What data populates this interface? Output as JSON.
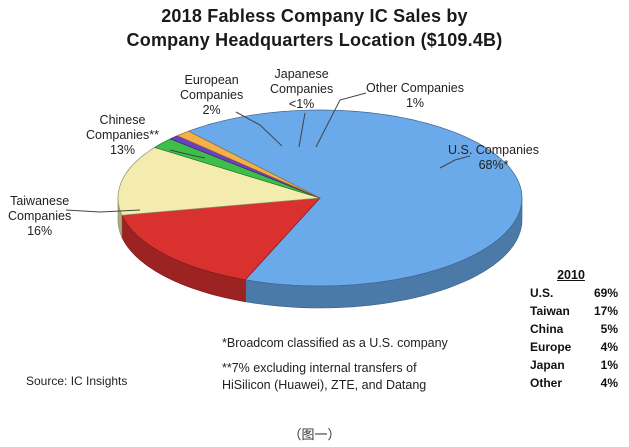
{
  "title_line1": "2018 Fabless Company IC Sales by",
  "title_line2": "Company Headquarters Location ($109.4B)",
  "chart_data": {
    "type": "pie",
    "title": "2018 Fabless Company IC Sales by Company Headquarters Location ($109.4B)",
    "slices": [
      {
        "label_lines": [
          "U.S. Companies",
          "68%*"
        ],
        "value": 68,
        "color": "#6aa9ea"
      },
      {
        "label_lines": [
          "Taiwanese",
          "Companies",
          "16%"
        ],
        "value": 16,
        "color": "#d9312e"
      },
      {
        "label_lines": [
          "Chinese",
          "Companies**",
          "13%"
        ],
        "value": 13,
        "color": "#f3ecae"
      },
      {
        "label_lines": [
          "European",
          "Companies",
          "2%"
        ],
        "value": 2,
        "color": "#3dbf4a"
      },
      {
        "label_lines": [
          "Japanese",
          "Companies",
          "<1%"
        ],
        "value": 0.8,
        "color": "#6a3fc4"
      },
      {
        "label_lines": [
          "Other Companies",
          "1%"
        ],
        "value": 1.2,
        "color": "#f4b04a"
      }
    ]
  },
  "notes": {
    "note1": "*Broadcom classified as a U.S. company",
    "note2_line1": "**7% excluding internal transfers of",
    "note2_line2": "HiSilicon (Huawei), ZTE, and Datang"
  },
  "source": "Source: IC Insights",
  "legend_2010": {
    "header": "2010",
    "rows": [
      {
        "name": "U.S.",
        "value": "69%"
      },
      {
        "name": "Taiwan",
        "value": "17%"
      },
      {
        "name": "China",
        "value": "5%"
      },
      {
        "name": "Europe",
        "value": "4%"
      },
      {
        "name": "Japan",
        "value": "1%"
      },
      {
        "name": "Other",
        "value": "4%"
      }
    ]
  },
  "caption": "（图一）"
}
